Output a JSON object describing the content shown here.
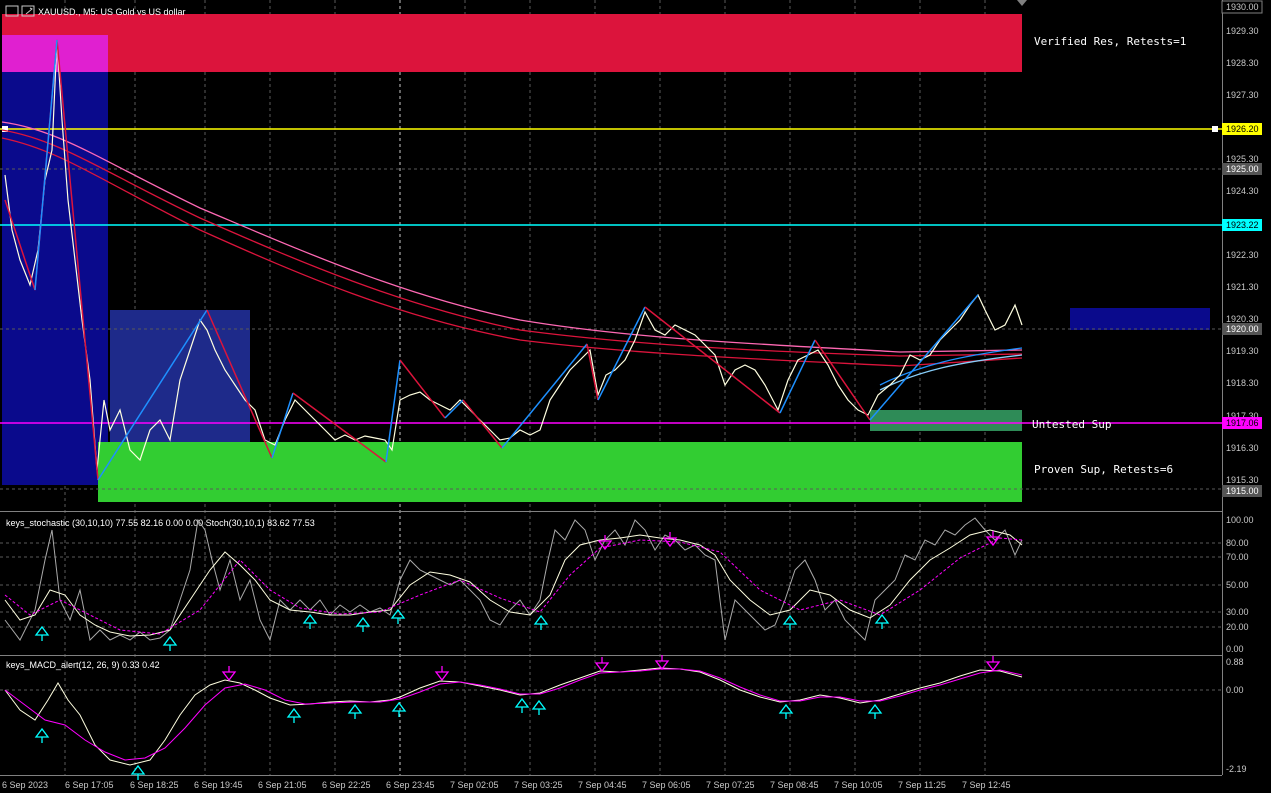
{
  "symbol_title": "XAUUSD., M5:  US Gold vs US dollar",
  "zones": {
    "verified_res": "Verified Res, Retests=1",
    "untested_sup": "Untested Sup",
    "proven_sup": "Proven Sup, Retests=6"
  },
  "price_axis": {
    "ticks": [
      "1929.30",
      "1928.30",
      "1927.30",
      "1925.30",
      "1924.30",
      "1922.30",
      "1921.30",
      "1920.30",
      "1919.30",
      "1918.30",
      "1917.30",
      "1916.30",
      "1915.30"
    ],
    "badges": [
      {
        "label": "1930.00",
        "color": "#000000",
        "text": "#c8c8c8"
      },
      {
        "label": "1926.20",
        "color": "#ffff00",
        "text": "#000000"
      },
      {
        "label": "1925.00",
        "color": "#555555",
        "text": "#ffffff"
      },
      {
        "label": "1923.22",
        "color": "#00ffff",
        "text": "#000000"
      },
      {
        "label": "1920.00",
        "color": "#555555",
        "text": "#ffffff"
      },
      {
        "label": "1917.06",
        "color": "#ff00ff",
        "text": "#000000"
      },
      {
        "label": "1915.00",
        "color": "#555555",
        "text": "#ffffff"
      }
    ]
  },
  "stoch": {
    "title": "keys_stochastic (30,10,10) 77.55 82.16 0.00 0.00  Stoch(30,10,1) 83.62 77.53",
    "ticks": [
      "100.00",
      "80.00",
      "70.00",
      "50.00",
      "30.00",
      "20.00",
      "0.00"
    ]
  },
  "macd": {
    "title": "keys_MACD_alert(12, 26, 9) 0.33 0.42",
    "ticks": [
      "0.88",
      "0.00",
      "-2.19"
    ]
  },
  "time_axis": [
    "6 Sep 2023",
    "6 Sep 17:05",
    "6 Sep 18:25",
    "6 Sep 19:45",
    "6 Sep 21:05",
    "6 Sep 22:25",
    "6 Sep 23:45",
    "7 Sep 02:05",
    "7 Sep 03:25",
    "7 Sep 04:45",
    "7 Sep 06:05",
    "7 Sep 07:25",
    "7 Sep 08:45",
    "7 Sep 10:05",
    "7 Sep 11:25",
    "7 Sep 12:45"
  ],
  "colors": {
    "resistance": "#dc143c",
    "resistance_inner": "#e020d0",
    "support": "#32cd32",
    "untested": "#2e8b57",
    "blue_zone": "#0a0a8c",
    "blue_zone_light": "#1e2a8a",
    "yellow_line": "#ffff00",
    "cyan_line": "#00ffff",
    "magenta_line": "#ff00ff"
  }
}
